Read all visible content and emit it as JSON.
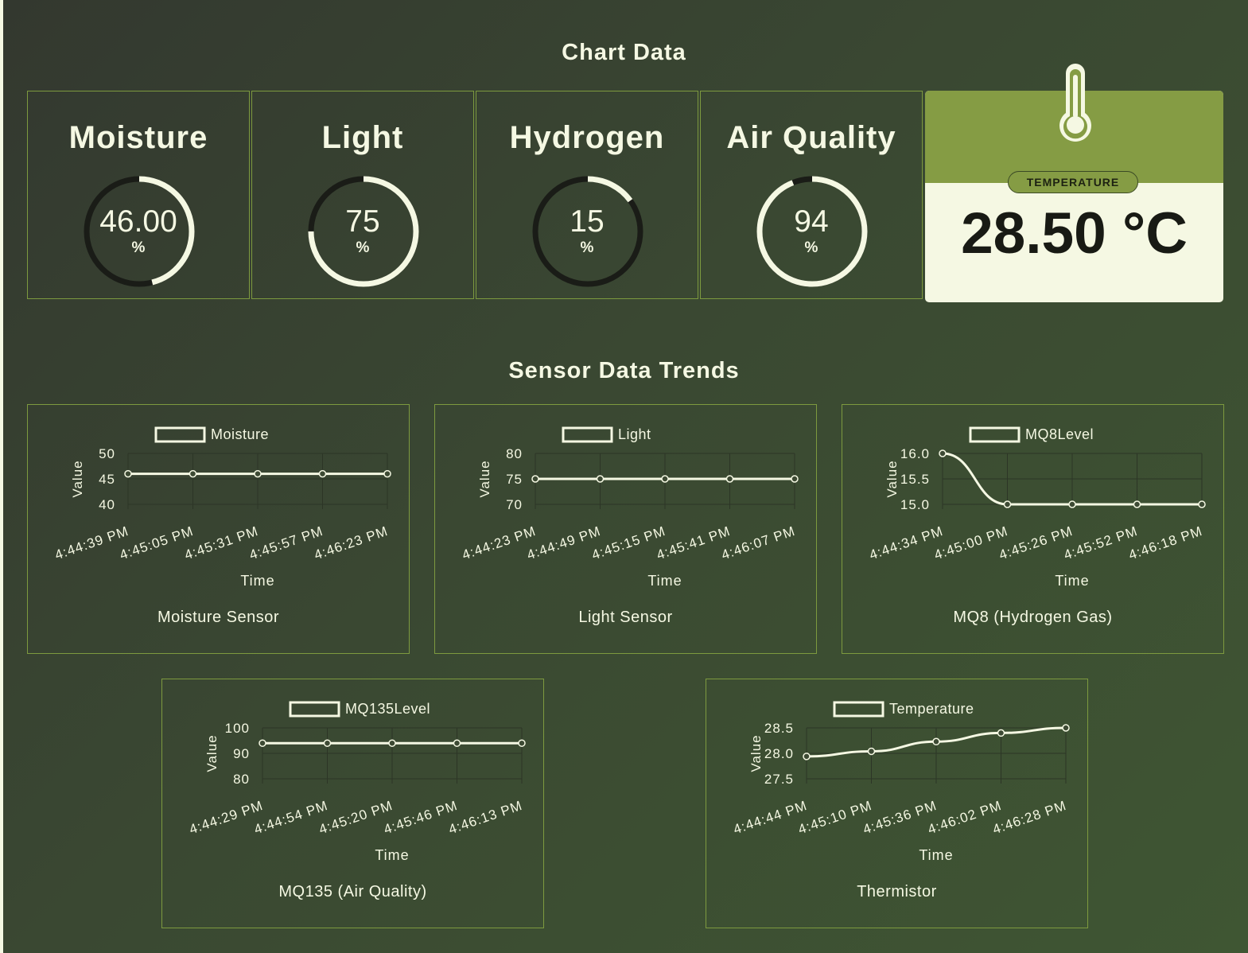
{
  "headings": {
    "chart_data": "Chart Data",
    "trends": "Sensor Data Trends"
  },
  "gauges": [
    {
      "label": "Moisture",
      "value": "46.00",
      "percent": 46,
      "unit": "%"
    },
    {
      "label": "Light",
      "value": "75",
      "percent": 75,
      "unit": "%"
    },
    {
      "label": "Hydrogen",
      "value": "15",
      "percent": 15,
      "unit": "%"
    },
    {
      "label": "Air Quality",
      "value": "94",
      "percent": 94,
      "unit": "%"
    }
  ],
  "temperature_card": {
    "badge": "TEMPERATURE",
    "value": "28.50 °C",
    "icon": "thermometer-icon"
  },
  "colors": {
    "accent": "#859c44",
    "light": "#f5f8e3",
    "dark_track": "#1a1c17",
    "border": "#7d9a3f"
  },
  "chart_data": [
    {
      "type": "line",
      "caption": "Moisture Sensor",
      "legend": "Moisture",
      "xlabel": "Time",
      "ylabel": "Value",
      "x": [
        "4:44:39 PM",
        "4:45:05 PM",
        "4:45:31 PM",
        "4:45:57 PM",
        "4:46:23 PM"
      ],
      "series": [
        {
          "name": "Moisture",
          "values": [
            46,
            46,
            46,
            46,
            46
          ]
        }
      ],
      "yticks": [
        "50",
        "45",
        "40"
      ],
      "ylim": [
        40,
        50
      ]
    },
    {
      "type": "line",
      "caption": "Light Sensor",
      "legend": "Light",
      "xlabel": "Time",
      "ylabel": "Value",
      "x": [
        "4:44:23 PM",
        "4:44:49 PM",
        "4:45:15 PM",
        "4:45:41 PM",
        "4:46:07 PM"
      ],
      "series": [
        {
          "name": "Light",
          "values": [
            75,
            75,
            75,
            75,
            75
          ]
        }
      ],
      "yticks": [
        "80",
        "75",
        "70"
      ],
      "ylim": [
        70,
        80
      ]
    },
    {
      "type": "line",
      "caption": "MQ8 (Hydrogen Gas)",
      "legend": "MQ8Level",
      "xlabel": "Time",
      "ylabel": "Value",
      "x": [
        "4:44:34 PM",
        "4:45:00 PM",
        "4:45:26 PM",
        "4:45:52 PM",
        "4:46:18 PM"
      ],
      "series": [
        {
          "name": "MQ8Level",
          "values": [
            16,
            15,
            15,
            15,
            15
          ]
        }
      ],
      "yticks": [
        "16.0",
        "15.5",
        "15.0"
      ],
      "ylim": [
        15,
        16
      ]
    },
    {
      "type": "line",
      "caption": "MQ135 (Air Quality)",
      "legend": "MQ135Level",
      "xlabel": "Time",
      "ylabel": "Value",
      "x": [
        "4:44:29 PM",
        "4:44:54 PM",
        "4:45:20 PM",
        "4:45:46 PM",
        "4:46:13 PM"
      ],
      "series": [
        {
          "name": "MQ135Level",
          "values": [
            94,
            94,
            94,
            94,
            94
          ]
        }
      ],
      "yticks": [
        "100",
        "90",
        "80"
      ],
      "ylim": [
        80,
        100
      ]
    },
    {
      "type": "line",
      "caption": "Thermistor",
      "legend": "Temperature",
      "xlabel": "Time",
      "ylabel": "Value",
      "x": [
        "4:44:44 PM",
        "4:45:10 PM",
        "4:45:36 PM",
        "4:46:02 PM",
        "4:46:28 PM"
      ],
      "series": [
        {
          "name": "Temperature",
          "values": [
            27.94,
            28.04,
            28.23,
            28.4,
            28.5
          ]
        }
      ],
      "yticks": [
        "28.5",
        "28.0",
        "27.5"
      ],
      "ylim": [
        27.5,
        28.5
      ]
    }
  ]
}
